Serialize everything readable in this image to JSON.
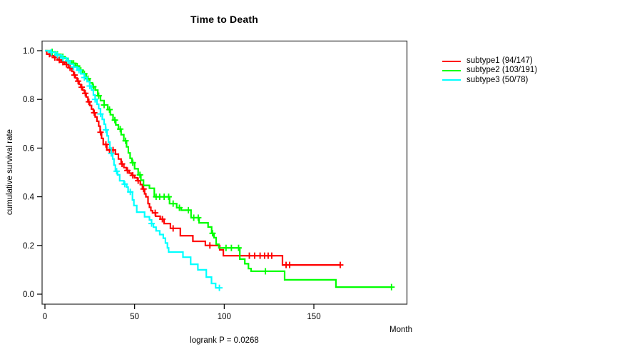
{
  "title": "Time to Death",
  "subtitle": "logrank P = 0.0268",
  "axes": {
    "x": {
      "label": "Month",
      "ticks": [
        0,
        50,
        100,
        150
      ]
    },
    "y": {
      "label": "cumulative survival rate",
      "ticks": [
        0.0,
        0.2,
        0.4,
        0.6,
        0.8,
        1.0
      ]
    }
  },
  "legend": {
    "position": "right-outside"
  },
  "colors": {
    "subtype1": "#FF0000",
    "subtype2": "#00FF00",
    "subtype3": "#00FFFF",
    "axis": "#3a3a3a",
    "text": "#000000"
  },
  "chart_data": {
    "type": "line",
    "subtype": "kaplan-meier-step",
    "title": "Time to Death",
    "xlabel": "Month",
    "ylabel": "cumulative survival rate",
    "annotation": "logrank P = 0.0268",
    "xlim": [
      0,
      195
    ],
    "ylim": [
      0,
      1
    ],
    "xticks": [
      0,
      50,
      100,
      150
    ],
    "yticks": [
      0.0,
      0.2,
      0.4,
      0.6,
      0.8,
      1.0
    ],
    "grid": false,
    "legend_position": "right",
    "series": [
      {
        "name": "subtype1 (94/147)",
        "events": 94,
        "total": 147,
        "color": "#FF0000",
        "end_month": 164.7,
        "steps": [
          [
            0,
            1.0
          ],
          [
            1,
            0.986
          ],
          [
            3,
            0.979
          ],
          [
            5,
            0.972
          ],
          [
            7,
            0.962
          ],
          [
            9,
            0.953
          ],
          [
            11,
            0.944
          ],
          [
            13,
            0.93
          ],
          [
            15,
            0.915
          ],
          [
            16,
            0.9
          ],
          [
            17,
            0.888
          ],
          [
            18,
            0.875
          ],
          [
            19,
            0.862
          ],
          [
            20,
            0.85
          ],
          [
            21,
            0.838
          ],
          [
            22,
            0.825
          ],
          [
            23,
            0.81
          ],
          [
            24,
            0.79
          ],
          [
            25,
            0.775
          ],
          [
            26,
            0.76
          ],
          [
            27,
            0.745
          ],
          [
            28,
            0.728
          ],
          [
            29,
            0.71
          ],
          [
            30,
            0.69
          ],
          [
            30.8,
            0.665
          ],
          [
            31.6,
            0.64
          ],
          [
            32.5,
            0.615
          ],
          [
            34.5,
            0.592
          ],
          [
            39.3,
            0.575
          ],
          [
            41,
            0.555
          ],
          [
            42.5,
            0.535
          ],
          [
            44,
            0.52
          ],
          [
            45.5,
            0.508
          ],
          [
            47,
            0.497
          ],
          [
            48.4,
            0.488
          ],
          [
            50,
            0.478
          ],
          [
            51.6,
            0.466
          ],
          [
            53.2,
            0.45
          ],
          [
            54.4,
            0.432
          ],
          [
            55.6,
            0.412
          ],
          [
            56.3,
            0.4
          ],
          [
            57.5,
            0.372
          ],
          [
            58.3,
            0.357
          ],
          [
            59.1,
            0.343
          ],
          [
            60,
            0.334
          ],
          [
            61.7,
            0.32
          ],
          [
            64.3,
            0.308
          ],
          [
            66.5,
            0.29
          ],
          [
            70,
            0.27
          ],
          [
            75.5,
            0.24
          ],
          [
            82.5,
            0.217
          ],
          [
            89.5,
            0.2
          ],
          [
            97.5,
            0.182
          ],
          [
            99.5,
            0.158
          ],
          [
            132.5,
            0.12
          ]
        ],
        "censors": [
          2.5,
          5.5,
          8,
          10,
          12,
          14,
          16.5,
          18.5,
          20.5,
          22.5,
          24.5,
          27.5,
          31,
          34,
          36,
          38,
          43,
          46,
          49,
          52,
          55,
          61.5,
          65.5,
          71.5,
          92,
          114,
          117,
          120,
          122.5,
          124.5,
          126.5,
          134.5,
          136.5,
          164.7
        ]
      },
      {
        "name": "subtype2 (103/191)",
        "events": 103,
        "total": 191,
        "color": "#00FF00",
        "end_month": 193.3,
        "steps": [
          [
            0,
            1.0
          ],
          [
            3,
            0.995
          ],
          [
            6,
            0.985
          ],
          [
            9,
            0.975
          ],
          [
            11,
            0.968
          ],
          [
            13,
            0.958
          ],
          [
            15,
            0.948
          ],
          [
            17,
            0.937
          ],
          [
            19,
            0.92
          ],
          [
            21,
            0.905
          ],
          [
            23,
            0.885
          ],
          [
            25,
            0.868
          ],
          [
            26.5,
            0.852
          ],
          [
            28,
            0.838
          ],
          [
            29.5,
            0.815
          ],
          [
            31,
            0.795
          ],
          [
            33,
            0.777
          ],
          [
            35,
            0.758
          ],
          [
            36.5,
            0.737
          ],
          [
            38,
            0.715
          ],
          [
            39.5,
            0.695
          ],
          [
            41,
            0.678
          ],
          [
            42.5,
            0.655
          ],
          [
            44,
            0.63
          ],
          [
            45.5,
            0.605
          ],
          [
            46.5,
            0.58
          ],
          [
            47.5,
            0.558
          ],
          [
            48.5,
            0.54
          ],
          [
            50,
            0.515
          ],
          [
            52,
            0.49
          ],
          [
            53.5,
            0.468
          ],
          [
            55,
            0.447
          ],
          [
            58.3,
            0.435
          ],
          [
            61,
            0.4
          ],
          [
            69.5,
            0.372
          ],
          [
            73.5,
            0.355
          ],
          [
            76,
            0.345
          ],
          [
            81.5,
            0.314
          ],
          [
            86,
            0.293
          ],
          [
            91,
            0.276
          ],
          [
            93,
            0.25
          ],
          [
            94.3,
            0.232
          ],
          [
            95.5,
            0.205
          ],
          [
            97,
            0.19
          ],
          [
            108.7,
            0.144
          ],
          [
            111.5,
            0.125
          ],
          [
            113.5,
            0.105
          ],
          [
            115,
            0.094
          ],
          [
            133.7,
            0.059
          ],
          [
            162.3,
            0.029
          ]
        ],
        "censors": [
          4,
          7,
          10,
          13,
          16,
          18,
          20,
          22,
          24,
          27,
          30,
          33,
          36,
          39,
          42,
          45,
          49,
          53,
          62,
          64,
          66.5,
          69,
          71.5,
          75,
          80,
          83,
          85.5,
          93.5,
          101,
          104,
          108,
          123,
          193.3
        ]
      },
      {
        "name": "subtype3 (50/78)",
        "events": 50,
        "total": 78,
        "color": "#00FFFF",
        "end_month": 97.3,
        "steps": [
          [
            0,
            1.0
          ],
          [
            3,
            0.993
          ],
          [
            6,
            0.982
          ],
          [
            9,
            0.97
          ],
          [
            12,
            0.958
          ],
          [
            14,
            0.945
          ],
          [
            16,
            0.933
          ],
          [
            18,
            0.92
          ],
          [
            20,
            0.905
          ],
          [
            22,
            0.89
          ],
          [
            23.5,
            0.873
          ],
          [
            25,
            0.855
          ],
          [
            26,
            0.838
          ],
          [
            27,
            0.818
          ],
          [
            28,
            0.8
          ],
          [
            29,
            0.78
          ],
          [
            30,
            0.762
          ],
          [
            31,
            0.74
          ],
          [
            32,
            0.718
          ],
          [
            33,
            0.698
          ],
          [
            33.8,
            0.675
          ],
          [
            34.6,
            0.65
          ],
          [
            35.4,
            0.625
          ],
          [
            36.2,
            0.6
          ],
          [
            37,
            0.578
          ],
          [
            37.8,
            0.555
          ],
          [
            38.5,
            0.53
          ],
          [
            39.3,
            0.505
          ],
          [
            40.5,
            0.49
          ],
          [
            41.7,
            0.466
          ],
          [
            44,
            0.452
          ],
          [
            45.6,
            0.44
          ],
          [
            46.4,
            0.42
          ],
          [
            48.8,
            0.387
          ],
          [
            49.6,
            0.364
          ],
          [
            51.2,
            0.337
          ],
          [
            55.6,
            0.318
          ],
          [
            58.3,
            0.305
          ],
          [
            59.5,
            0.29
          ],
          [
            60.5,
            0.275
          ],
          [
            62,
            0.26
          ],
          [
            64,
            0.245
          ],
          [
            66,
            0.23
          ],
          [
            67.2,
            0.21
          ],
          [
            68.3,
            0.19
          ],
          [
            69,
            0.173
          ],
          [
            77,
            0.152
          ],
          [
            81.3,
            0.123
          ],
          [
            85.3,
            0.1
          ],
          [
            90,
            0.07
          ],
          [
            92.9,
            0.044
          ],
          [
            95.2,
            0.026
          ]
        ],
        "censors": [
          3.5,
          7,
          10,
          13,
          16,
          19,
          22,
          25,
          28,
          31,
          34,
          37,
          40,
          44.5,
          47.6,
          59.5,
          97.3
        ]
      }
    ]
  }
}
